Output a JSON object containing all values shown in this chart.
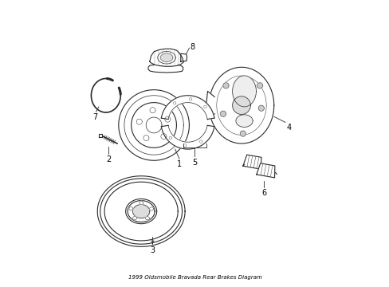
{
  "title": "1999 Oldsmobile Bravada Rear Brakes Diagram",
  "background_color": "#ffffff",
  "line_color": "#2a2a2a",
  "label_color": "#000000",
  "figsize": [
    4.89,
    3.6
  ],
  "dpi": 100
}
